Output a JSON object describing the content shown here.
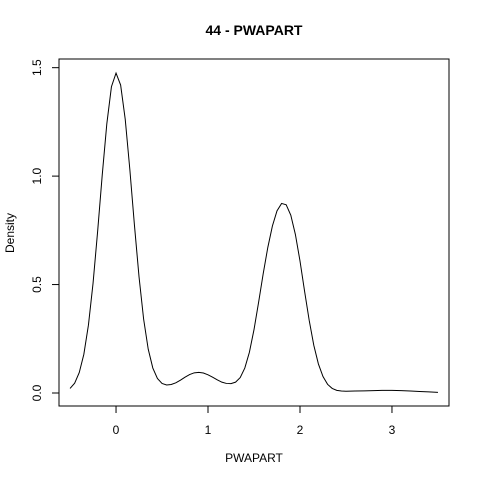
{
  "chart_data": {
    "type": "line",
    "title": "44 - PWAPART",
    "xlabel": "PWAPART",
    "ylabel": "Density",
    "xlim": [
      -0.62,
      3.62
    ],
    "ylim": [
      -0.06,
      1.54
    ],
    "x_ticks": [
      0,
      1,
      2,
      3
    ],
    "x_tick_labels": [
      "0",
      "1",
      "2",
      "3"
    ],
    "y_ticks": [
      0.0,
      0.5,
      1.0,
      1.5
    ],
    "y_tick_labels": [
      "0.0",
      "0.5",
      "1.0",
      "1.5"
    ],
    "grid": false,
    "legend": "none",
    "line_color": "#000000",
    "series": [
      {
        "x": [
          -0.5,
          -0.45,
          -0.4,
          -0.35,
          -0.3,
          -0.25,
          -0.2,
          -0.15,
          -0.1,
          -0.05,
          0.0,
          0.05,
          0.1,
          0.15,
          0.2,
          0.25,
          0.3,
          0.35,
          0.4,
          0.45,
          0.5,
          0.55,
          0.6,
          0.65,
          0.7,
          0.75,
          0.8,
          0.85,
          0.9,
          0.95,
          1.0,
          1.05,
          1.1,
          1.15,
          1.2,
          1.25,
          1.3,
          1.35,
          1.4,
          1.45,
          1.5,
          1.55,
          1.6,
          1.65,
          1.7,
          1.75,
          1.8,
          1.85,
          1.9,
          1.95,
          2.0,
          2.05,
          2.1,
          2.15,
          2.2,
          2.25,
          2.3,
          2.35,
          2.4,
          2.45,
          2.5,
          2.6,
          2.7,
          2.8,
          2.9,
          3.0,
          3.1,
          3.2,
          3.3,
          3.4,
          3.5
        ],
        "y": [
          0.021,
          0.045,
          0.094,
          0.178,
          0.313,
          0.505,
          0.745,
          1.005,
          1.242,
          1.412,
          1.475,
          1.42,
          1.262,
          1.031,
          0.775,
          0.536,
          0.341,
          0.202,
          0.115,
          0.067,
          0.044,
          0.037,
          0.039,
          0.047,
          0.059,
          0.073,
          0.085,
          0.093,
          0.095,
          0.092,
          0.084,
          0.073,
          0.061,
          0.05,
          0.044,
          0.043,
          0.05,
          0.071,
          0.115,
          0.188,
          0.292,
          0.418,
          0.55,
          0.671,
          0.77,
          0.84,
          0.874,
          0.868,
          0.82,
          0.731,
          0.609,
          0.469,
          0.335,
          0.22,
          0.134,
          0.076,
          0.04,
          0.021,
          0.012,
          0.009,
          0.008,
          0.009,
          0.01,
          0.011,
          0.012,
          0.012,
          0.011,
          0.009,
          0.007,
          0.005,
          0.003
        ]
      }
    ]
  }
}
